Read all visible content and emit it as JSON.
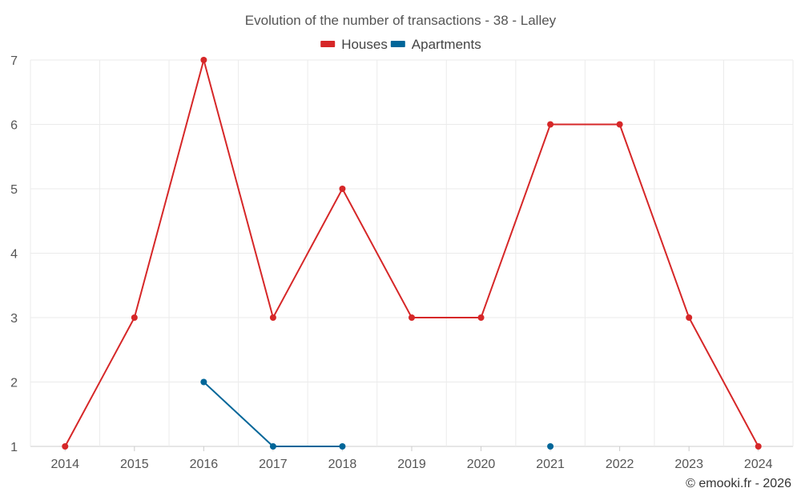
{
  "chart_data": {
    "type": "line",
    "title": "Evolution of the number of transactions - 38 - Lalley",
    "categories": [
      "2014",
      "2015",
      "2016",
      "2017",
      "2018",
      "2019",
      "2020",
      "2021",
      "2022",
      "2023",
      "2024"
    ],
    "series": [
      {
        "name": "Houses",
        "color": "#d62728",
        "values": [
          1,
          3,
          7,
          3,
          5,
          3,
          3,
          6,
          6,
          3,
          1
        ]
      },
      {
        "name": "Apartments",
        "color": "#006699",
        "values": [
          null,
          null,
          2,
          1,
          1,
          null,
          null,
          1,
          null,
          null,
          null
        ]
      }
    ],
    "yticks": [
      1,
      2,
      3,
      4,
      5,
      6,
      7
    ],
    "ylim": [
      1,
      7
    ],
    "xlabel": "",
    "ylabel": "",
    "grid": true,
    "legend": "top-center"
  },
  "credit": "© emooki.fr - 2026"
}
